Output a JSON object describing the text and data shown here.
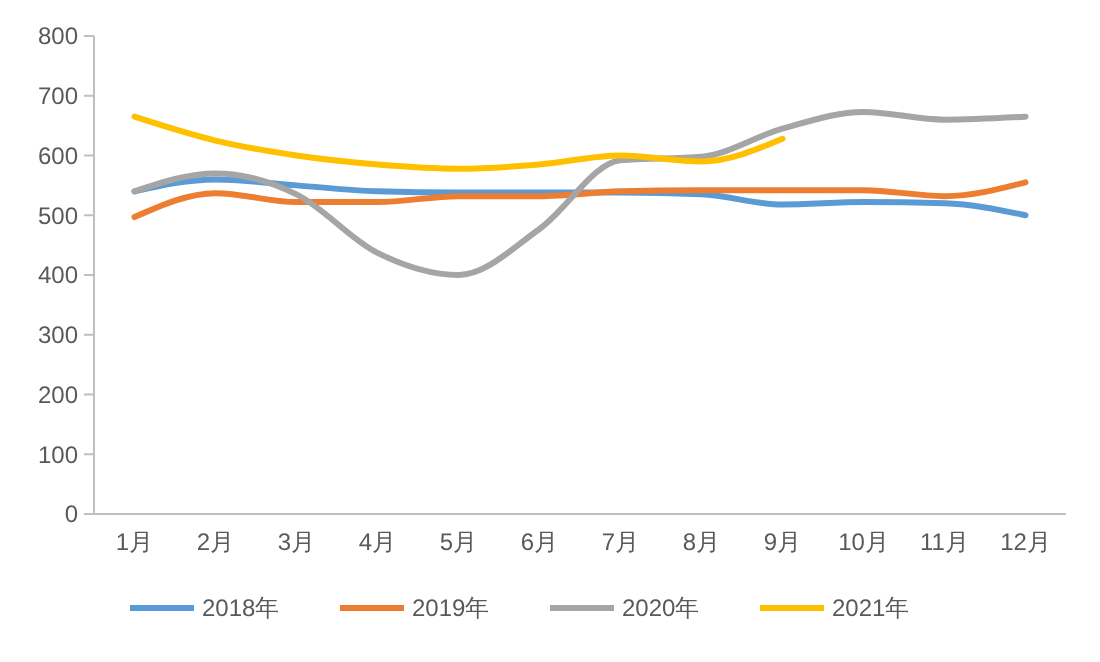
{
  "chart_data": {
    "type": "line",
    "categories": [
      "1月",
      "2月",
      "3月",
      "4月",
      "5月",
      "6月",
      "7月",
      "8月",
      "9月",
      "10月",
      "11月",
      "12月"
    ],
    "series": [
      {
        "name": "2018年",
        "color": "#5b9bd5",
        "values": [
          540,
          560,
          550,
          540,
          538,
          538,
          538,
          535,
          518,
          522,
          520,
          500
        ]
      },
      {
        "name": "2019年",
        "color": "#ed7d31",
        "values": [
          497,
          537,
          522,
          522,
          532,
          532,
          540,
          542,
          542,
          542,
          532,
          555
        ]
      },
      {
        "name": "2020年",
        "color": "#a5a5a5",
        "values": [
          540,
          570,
          535,
          437,
          400,
          477,
          592,
          598,
          645,
          673,
          660,
          665
        ]
      },
      {
        "name": "2021年",
        "color": "#ffc000",
        "values": [
          665,
          625,
          600,
          585,
          578,
          585,
          600,
          590,
          628,
          null,
          null,
          null
        ]
      }
    ],
    "ylim": [
      0,
      800
    ],
    "yticks": [
      0,
      100,
      200,
      300,
      400,
      500,
      600,
      700,
      800
    ],
    "grid": false,
    "legend": "bottom",
    "marker": "none",
    "line_style": "solid"
  }
}
